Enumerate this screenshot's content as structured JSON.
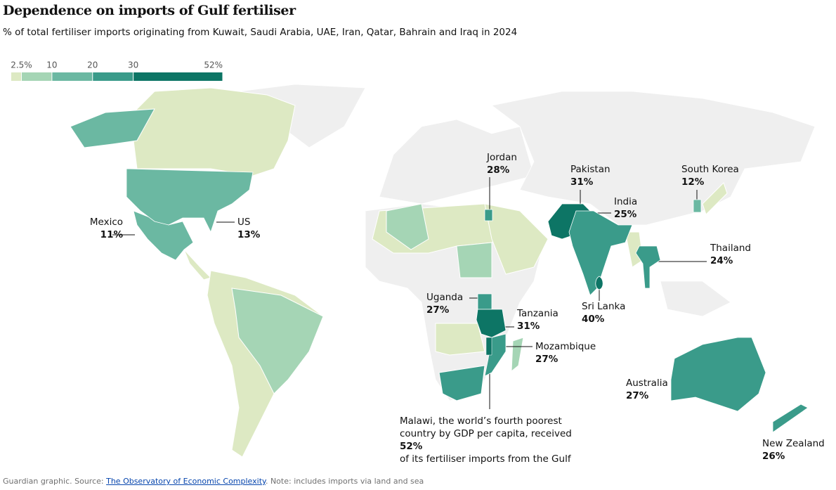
{
  "title": "Dependence on imports of Gulf fertiliser",
  "subtitle": "% of total fertiliser imports originating from Kuwait, Saudi Arabia, UAE, Iran, Qatar, Bahrain and Iraq in 2024",
  "legend": {
    "range": [
      0,
      52
    ],
    "ticks": [
      {
        "value": 2.5,
        "label": "2.5%"
      },
      10,
      20,
      30,
      {
        "value": 52,
        "label": "52%"
      }
    ],
    "colors": [
      "#dde9c3",
      "#a5d5b5",
      "#6bb8a2",
      "#3a9b8a",
      "#0d7565"
    ]
  },
  "countries": [
    {
      "name": "Mexico",
      "value": 11,
      "value_label": "11%"
    },
    {
      "name": "US",
      "value": 13,
      "value_label": "13%"
    },
    {
      "name": "Jordan",
      "value": 28,
      "value_label": "28%"
    },
    {
      "name": "Pakistan",
      "value": 31,
      "value_label": "31%"
    },
    {
      "name": "India",
      "value": 25,
      "value_label": "25%"
    },
    {
      "name": "South Korea",
      "value": 12,
      "value_label": "12%"
    },
    {
      "name": "Thailand",
      "value": 24,
      "value_label": "24%"
    },
    {
      "name": "Uganda",
      "value": 27,
      "value_label": "27%"
    },
    {
      "name": "Tanzania",
      "value": 31,
      "value_label": "31%"
    },
    {
      "name": "Mozambique",
      "value": 27,
      "value_label": "27%"
    },
    {
      "name": "Sri Lanka",
      "value": 40,
      "value_label": "40%"
    },
    {
      "name": "Australia",
      "value": 27,
      "value_label": "27%"
    },
    {
      "name": "New Zealand",
      "value": 26,
      "value_label": "26%"
    }
  ],
  "annotation": {
    "text_before": "Malawi, the world’s fourth poorest country by GDP per capita, received",
    "value": 52,
    "value_label": "52%",
    "text_after": "of its fertiliser imports from the Gulf"
  },
  "footer": {
    "prefix": "Guardian graphic. Source:",
    "source": "The Observatory of Economic Complexity",
    "note": ". Note: includes imports via land and sea"
  }
}
